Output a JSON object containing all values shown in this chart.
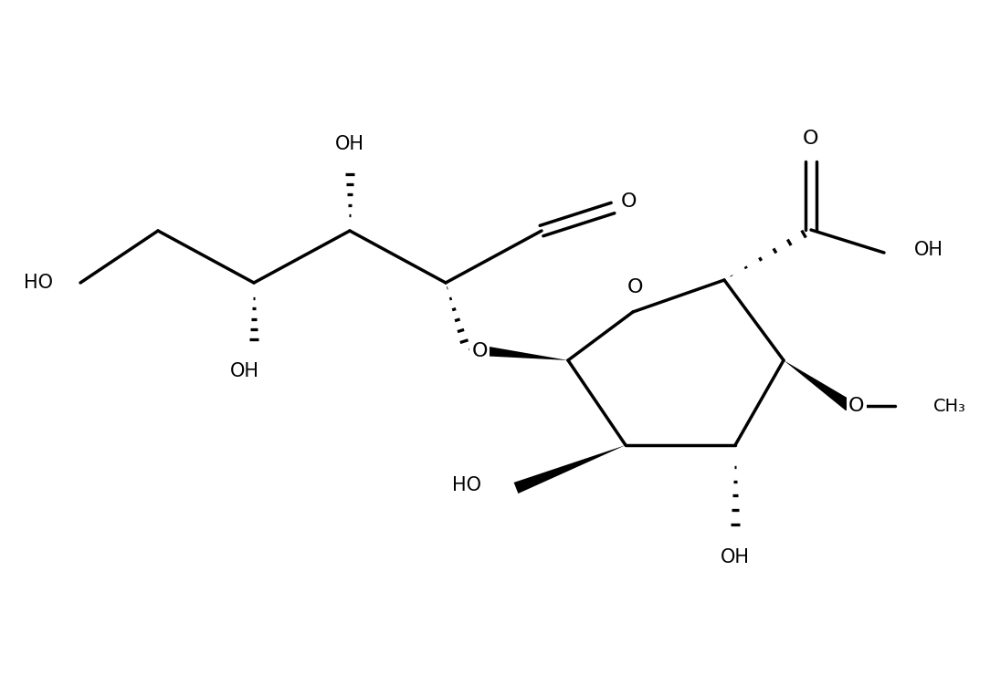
{
  "background_color": "#ffffff",
  "line_color": "#000000",
  "line_width": 2.5,
  "font_size": 15,
  "figsize": [
    10.84,
    7.4
  ],
  "dpi": 100,
  "xlim": [
    0,
    10.84
  ],
  "ylim": [
    0,
    7.4
  ]
}
